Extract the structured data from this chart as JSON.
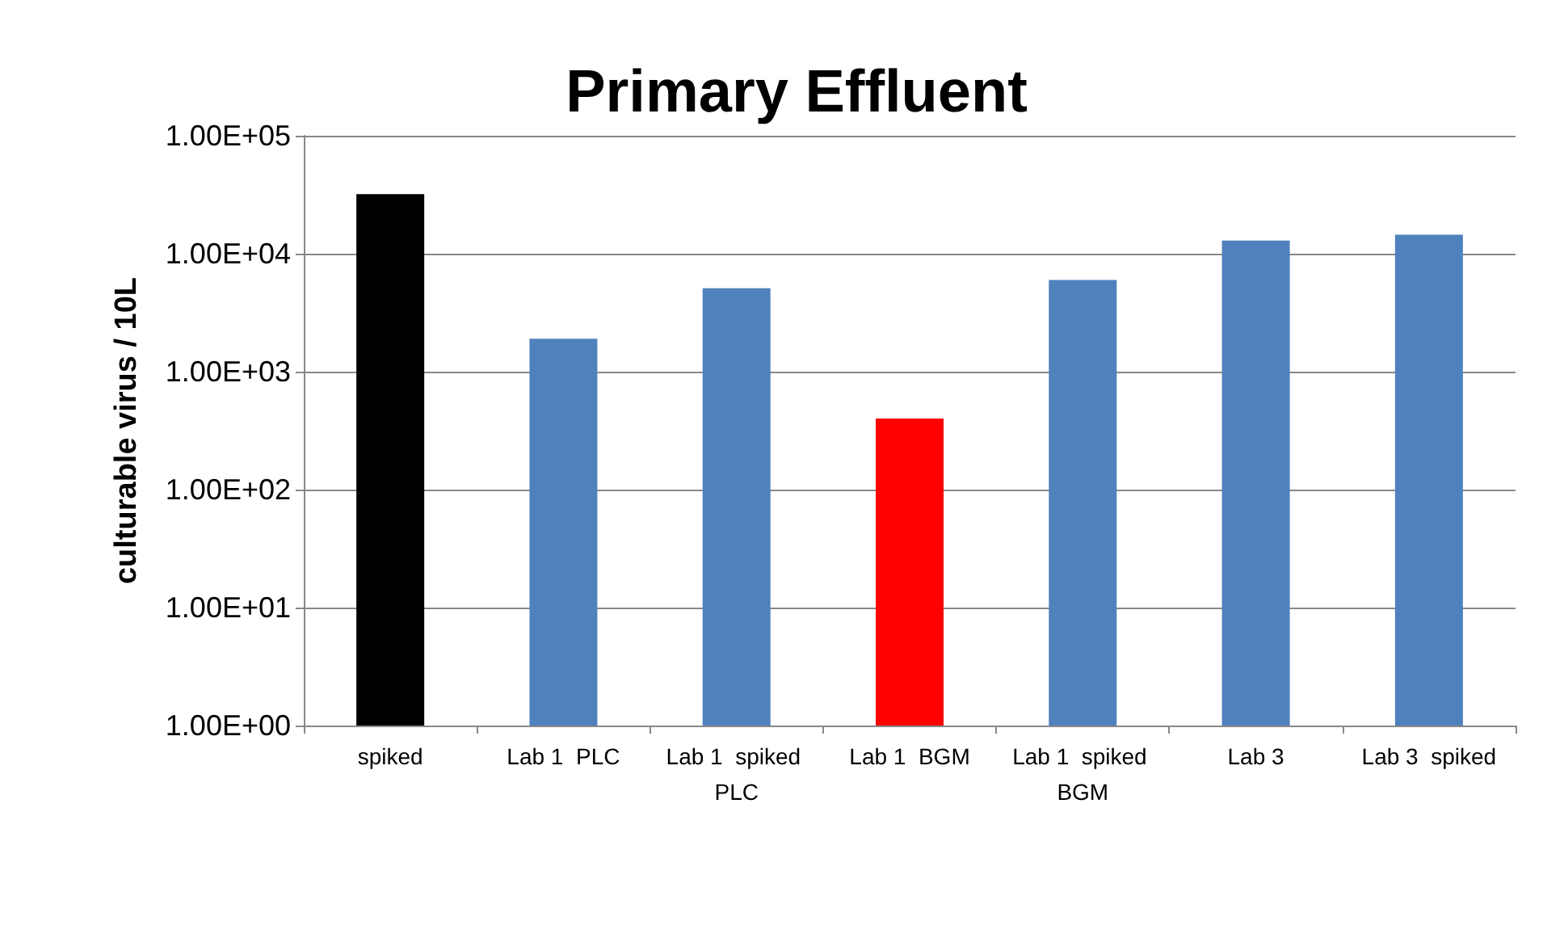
{
  "chart_data": {
    "type": "bar",
    "title": "Primary Effluent",
    "ylabel": "culturable virus / 10L",
    "categories": [
      "spiked",
      "Lab 1  PLC",
      "Lab 1  spiked PLC",
      "Lab 1  BGM",
      "Lab 1  spiked BGM",
      "Lab 3",
      "Lab 3  spiked"
    ],
    "values": [
      32000,
      1900,
      5100,
      400,
      6000,
      12900,
      14500
    ],
    "colors": [
      "#000000",
      "#4f81bd",
      "#4f81bd",
      "#ff0000",
      "#4f81bd",
      "#4f81bd",
      "#4f81bd"
    ],
    "log": "y",
    "ylim": [
      1,
      100000
    ],
    "yticks": [
      {
        "value": 1,
        "label": "1.00E+00"
      },
      {
        "value": 10,
        "label": "1.00E+01"
      },
      {
        "value": 100,
        "label": "1.00E+02"
      },
      {
        "value": 1000,
        "label": "1.00E+03"
      },
      {
        "value": 10000,
        "label": "1.00E+04"
      },
      {
        "value": 100000,
        "label": "1.00E+05"
      }
    ],
    "grid": "y"
  }
}
